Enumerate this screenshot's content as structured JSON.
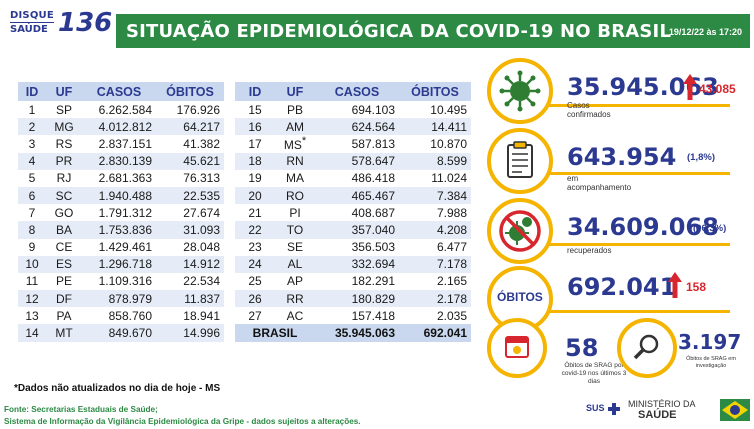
{
  "header": {
    "disque_line1": "DISQUE",
    "disque_line2": "SAÚDE",
    "disque_number": "136",
    "title": "SITUAÇÃO EPIDEMIOLÓGICA DA COVID-19 NO BRASIL",
    "date": "19/12/22 às 17:20"
  },
  "table": {
    "columns": [
      "ID",
      "UF",
      "CASOS",
      "ÓBITOS"
    ],
    "left_rows": [
      [
        "1",
        "SP",
        "6.262.584",
        "176.926"
      ],
      [
        "2",
        "MG",
        "4.012.812",
        "64.217"
      ],
      [
        "3",
        "RS",
        "2.837.151",
        "41.382"
      ],
      [
        "4",
        "PR",
        "2.830.139",
        "45.621"
      ],
      [
        "5",
        "RJ",
        "2.681.363",
        "76.313"
      ],
      [
        "6",
        "SC",
        "1.940.488",
        "22.535"
      ],
      [
        "7",
        "GO",
        "1.791.312",
        "27.674"
      ],
      [
        "8",
        "BA",
        "1.753.836",
        "31.093"
      ],
      [
        "9",
        "CE",
        "1.429.461",
        "28.048"
      ],
      [
        "10",
        "ES",
        "1.296.718",
        "14.912"
      ],
      [
        "11",
        "PE",
        "1.109.316",
        "22.534"
      ],
      [
        "12",
        "DF",
        "878.979",
        "11.837"
      ],
      [
        "13",
        "PA",
        "858.760",
        "18.941"
      ],
      [
        "14",
        "MT",
        "849.670",
        "14.996"
      ]
    ],
    "right_rows": [
      [
        "15",
        "PB",
        "694.103",
        "10.495"
      ],
      [
        "16",
        "AM",
        "624.564",
        "14.411"
      ],
      [
        "17",
        "MS",
        "587.813",
        "10.870"
      ],
      [
        "18",
        "RN",
        "578.647",
        "8.599"
      ],
      [
        "19",
        "MA",
        "486.418",
        "11.024"
      ],
      [
        "20",
        "RO",
        "465.467",
        "7.384"
      ],
      [
        "21",
        "PI",
        "408.687",
        "7.988"
      ],
      [
        "22",
        "TO",
        "357.040",
        "4.208"
      ],
      [
        "23",
        "SE",
        "356.503",
        "6.477"
      ],
      [
        "24",
        "AL",
        "332.694",
        "7.178"
      ],
      [
        "25",
        "AP",
        "182.291",
        "2.165"
      ],
      [
        "26",
        "RR",
        "180.829",
        "2.178"
      ],
      [
        "27",
        "AC",
        "157.418",
        "2.035"
      ]
    ],
    "ms_asterisk": "*",
    "total_label": "BRASIL",
    "total_cases": "35.945.063",
    "total_deaths": "692.041"
  },
  "stats": {
    "confirmed": {
      "value": "35.945.063",
      "label": "Casos confirmados",
      "new": "43.085",
      "icon": "virus-icon"
    },
    "monitoring": {
      "value": "643.954",
      "label": "em acompanhamento",
      "pct": "(1,8%)",
      "icon": "clipboard-icon"
    },
    "recovered": {
      "value": "34.609.068",
      "label": "recuperados",
      "pct": "(96,3%)",
      "icon": "no-virus-icon"
    },
    "deaths": {
      "badge": "ÓBITOS",
      "value": "692.041",
      "new": "158"
    },
    "srag_deaths": {
      "value": "58",
      "label": "Óbitos de SRAG por covid-19 nos últimos 3 dias",
      "icon": "calendar-icon"
    },
    "srag_investigation": {
      "value": "3.197",
      "label": "Óbitos de SRAG em investigação",
      "icon": "magnifier-icon"
    }
  },
  "footer": {
    "note": "*Dados não atualizados no dia de hoje - MS",
    "source1": "Fonte: Secretarias Estaduais de Saúde;",
    "source2": "Sistema de Informação da Vigilância Epidemiológica da Gripe - dados sujeitos a alterações.",
    "sus": "SUS",
    "ministry1": "MINISTÉRIO DA",
    "ministry2": "SAÚDE"
  },
  "colors": {
    "brand_green": "#2d8a45",
    "brand_blue": "#2b3990",
    "accent_yellow": "#f4b400",
    "alert_red": "#d7262e"
  }
}
